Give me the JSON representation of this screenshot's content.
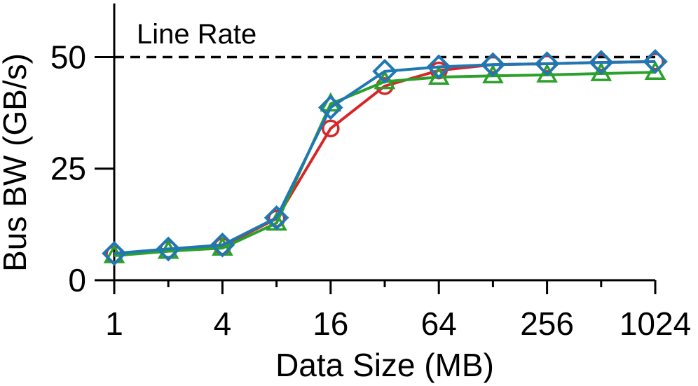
{
  "chart_data": {
    "type": "line",
    "title": "",
    "xlabel": "Data Size (MB)",
    "ylabel": "Bus BW (GB/s)",
    "x_scale": "log2",
    "x": [
      1,
      2,
      4,
      8,
      16,
      32,
      64,
      128,
      256,
      512,
      1024
    ],
    "x_ticks": [
      1,
      4,
      16,
      64,
      256,
      1024
    ],
    "x_tick_labels": [
      "1",
      "4",
      "16",
      "64",
      "256",
      "1024"
    ],
    "xlim": [
      1,
      1024
    ],
    "y_ticks": [
      0,
      25,
      50
    ],
    "y_tick_labels": [
      "0",
      "25",
      "50"
    ],
    "ylim": [
      0,
      62
    ],
    "reference_line": {
      "label": "Line Rate",
      "y": 50,
      "style": "dashed"
    },
    "series": [
      {
        "marker": "circle",
        "color": "#d62728",
        "values": [
          5.8,
          6.9,
          7.6,
          13.8,
          34.0,
          43.5,
          47.0,
          48.3,
          48.5,
          48.8,
          49.0
        ]
      },
      {
        "marker": "triangle",
        "color": "#2ca02c",
        "values": [
          5.5,
          6.5,
          7.2,
          12.8,
          39.5,
          44.5,
          45.5,
          45.8,
          46.0,
          46.3,
          46.6
        ]
      },
      {
        "marker": "diamond",
        "color": "#1f77b4",
        "values": [
          6.0,
          7.0,
          7.9,
          14.0,
          38.7,
          46.8,
          47.8,
          48.3,
          48.5,
          48.8,
          49.0
        ]
      }
    ]
  }
}
